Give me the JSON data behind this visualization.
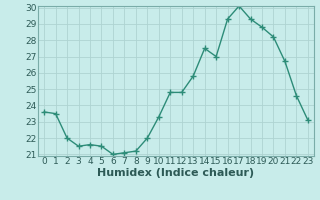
{
  "x": [
    0,
    1,
    2,
    3,
    4,
    5,
    6,
    7,
    8,
    9,
    10,
    11,
    12,
    13,
    14,
    15,
    16,
    17,
    18,
    19,
    20,
    21,
    22,
    23
  ],
  "y": [
    23.6,
    23.5,
    22.0,
    21.5,
    21.6,
    21.5,
    21.0,
    21.1,
    21.2,
    22.0,
    23.3,
    24.8,
    24.8,
    25.8,
    27.5,
    27.0,
    29.3,
    30.1,
    29.3,
    28.8,
    28.2,
    26.7,
    24.6,
    23.1
  ],
  "line_color": "#2d8c78",
  "marker": "+",
  "marker_size": 4,
  "line_width": 1.0,
  "background_color": "#c8ecea",
  "grid_color": "#aed4d2",
  "xlabel": "Humidex (Indice chaleur)",
  "ylim": [
    21,
    30
  ],
  "xlim_min": -0.5,
  "xlim_max": 23.5,
  "yticks": [
    21,
    22,
    23,
    24,
    25,
    26,
    27,
    28,
    29,
    30
  ],
  "xticks": [
    0,
    1,
    2,
    3,
    4,
    5,
    6,
    7,
    8,
    9,
    10,
    11,
    12,
    13,
    14,
    15,
    16,
    17,
    18,
    19,
    20,
    21,
    22,
    23
  ],
  "tick_label_fontsize": 6.5,
  "xlabel_fontsize": 8,
  "border_color": "#7aaca8"
}
